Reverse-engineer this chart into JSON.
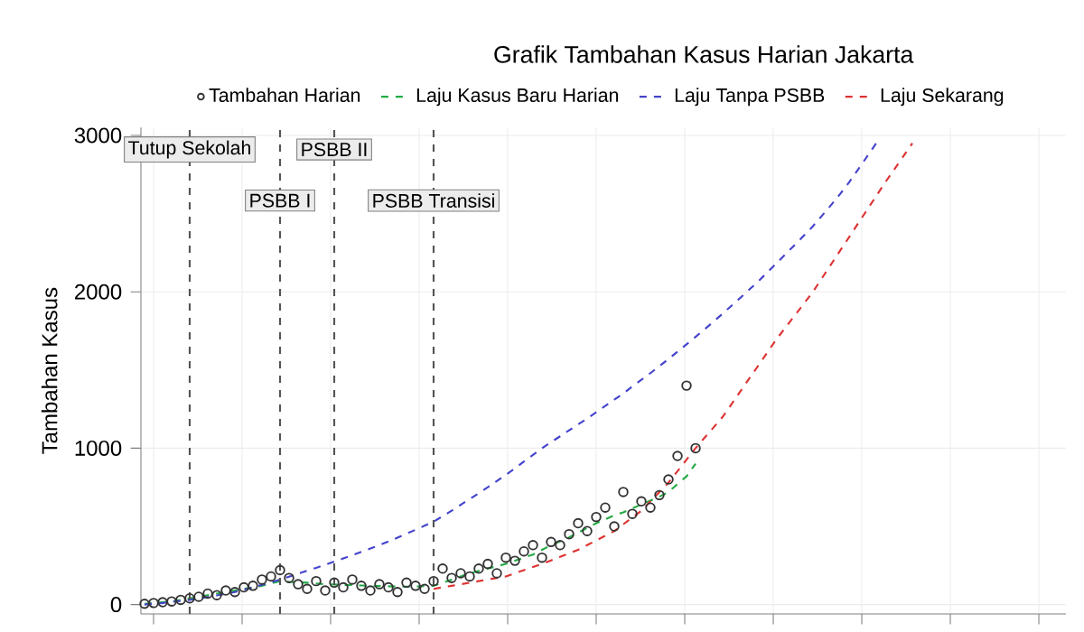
{
  "chart_data": {
    "type": "line",
    "title": "Grafik Tambahan Kasus Harian Jakarta",
    "ylabel": "Tambahan Kasus",
    "categories": [
      null,
      null,
      null,
      null,
      null,
      null,
      null,
      null,
      null,
      null,
      null,
      null,
      null,
      null,
      null,
      null,
      null,
      null,
      null,
      null,
      null,
      null,
      null,
      null,
      null,
      null,
      null,
      null,
      null,
      null,
      null,
      null,
      null,
      null,
      null,
      null,
      null,
      null,
      null,
      null,
      null,
      null,
      null,
      null,
      null,
      null,
      null,
      null,
      null,
      null,
      null,
      null,
      null,
      null,
      null,
      null,
      null,
      null,
      null,
      null,
      null,
      null,
      null,
      null,
      null,
      null,
      null,
      null,
      null,
      null,
      null,
      null,
      null,
      null,
      null,
      null,
      null,
      null,
      null,
      null,
      null,
      null,
      null,
      null,
      null,
      null,
      null,
      null,
      null,
      null,
      null,
      null,
      null,
      null,
      null,
      null,
      null,
      null
    ],
    "series": [
      {
        "name": "Tambahan Harian",
        "type": "scatter",
        "marker": "circle",
        "color": "#333333",
        "values": [
          5,
          10,
          15,
          20,
          30,
          40,
          50,
          70,
          60,
          90,
          80,
          110,
          120,
          160,
          180,
          220,
          170,
          130,
          100,
          150,
          90,
          140,
          110,
          160,
          120,
          90,
          130,
          110,
          80,
          140,
          120,
          100,
          150,
          230,
          170,
          200,
          180,
          230,
          260,
          200,
          300,
          280,
          340,
          380,
          300,
          400,
          380,
          450,
          520,
          470,
          560,
          620,
          500,
          720,
          580,
          660,
          620,
          700,
          800,
          950,
          1400,
          1000,
          null,
          null,
          null,
          null,
          null,
          null,
          null,
          null,
          null,
          null,
          null,
          null,
          null,
          null,
          null,
          null,
          null,
          null,
          null,
          null,
          null,
          null,
          null,
          null,
          null,
          null,
          null,
          null,
          null,
          null,
          null,
          null,
          null,
          null,
          null,
          null
        ]
      },
      {
        "name": "Laju Kasus Baru Harian",
        "color": "#22aa44",
        "values": [
          5,
          10,
          15,
          20,
          30,
          40,
          50,
          60,
          70,
          80,
          90,
          100,
          110,
          120,
          135,
          150,
          145,
          142,
          140,
          135,
          130,
          128,
          126,
          125,
          122,
          120,
          118,
          117,
          115,
          115,
          115,
          118,
          120,
          140,
          160,
          180,
          200,
          215,
          230,
          245,
          260,
          280,
          300,
          320,
          350,
          380,
          405,
          430,
          460,
          490,
          520,
          545,
          570,
          590,
          615,
          640,
          665,
          690,
          720,
          770,
          820,
          900,
          null,
          null,
          null,
          null,
          null,
          null,
          null,
          null,
          null,
          null,
          null,
          null,
          null,
          null,
          null,
          null,
          null,
          null,
          null,
          null,
          null,
          null,
          null,
          null,
          null,
          null,
          null,
          null,
          null,
          null,
          null,
          null,
          null,
          null,
          null,
          null
        ]
      },
      {
        "name": "Laju Tanpa PSBB",
        "color": "#4444cc",
        "values": [
          0,
          5,
          10,
          17,
          23,
          30,
          38,
          48,
          58,
          69,
          80,
          95,
          110,
          126,
          143,
          160,
          178,
          197,
          216,
          235,
          255,
          275,
          295,
          315,
          337,
          358,
          380,
          403,
          428,
          453,
          478,
          504,
          530,
          565,
          600,
          638,
          675,
          712,
          750,
          790,
          830,
          870,
          915,
          957,
          1000,
          1038,
          1076,
          1114,
          1152,
          1190,
          1230,
          1270,
          1310,
          1350,
          1395,
          1437,
          1480,
          1525,
          1570,
          1617,
          1664,
          1712,
          1760,
          1810,
          1860,
          1912,
          1964,
          2017,
          2070,
          2127,
          2185,
          2243,
          2301,
          2360,
          2420,
          2487,
          2555,
          2625,
          2700,
          2783,
          2866,
          2950,
          null,
          null,
          null,
          null,
          null,
          null,
          null,
          null,
          null,
          null,
          null,
          null,
          null,
          null,
          null,
          null
        ]
      },
      {
        "name": "Laju Sekarang",
        "color": "#dd3333",
        "values": [
          null,
          null,
          null,
          null,
          null,
          null,
          null,
          null,
          null,
          null,
          null,
          null,
          null,
          null,
          null,
          null,
          null,
          null,
          null,
          null,
          null,
          null,
          null,
          null,
          null,
          null,
          null,
          null,
          null,
          null,
          null,
          null,
          100,
          110,
          120,
          130,
          140,
          150,
          160,
          170,
          180,
          200,
          220,
          240,
          260,
          282,
          305,
          328,
          350,
          380,
          410,
          440,
          470,
          513,
          557,
          600,
          660,
          720,
          780,
          853,
          927,
          1000,
          1067,
          1133,
          1200,
          1283,
          1367,
          1450,
          1533,
          1617,
          1700,
          1775,
          1850,
          1925,
          2000,
          2088,
          2175,
          2263,
          2350,
          2438,
          2525,
          2613,
          2700,
          2783,
          2866,
          2950,
          null,
          null,
          null,
          null,
          null,
          null,
          null,
          null,
          null,
          null,
          null,
          null
        ]
      }
    ],
    "line_style": "dashed",
    "legend": "top",
    "grid": true,
    "tick_labels": "y",
    "ylim": [
      -60,
      3050
    ],
    "yticks": [
      0,
      1000,
      2000,
      3000
    ],
    "annotations": [
      "Tutup Sekolah",
      "PSBB I",
      "PSBB II",
      "PSBB Transisi"
    ]
  }
}
